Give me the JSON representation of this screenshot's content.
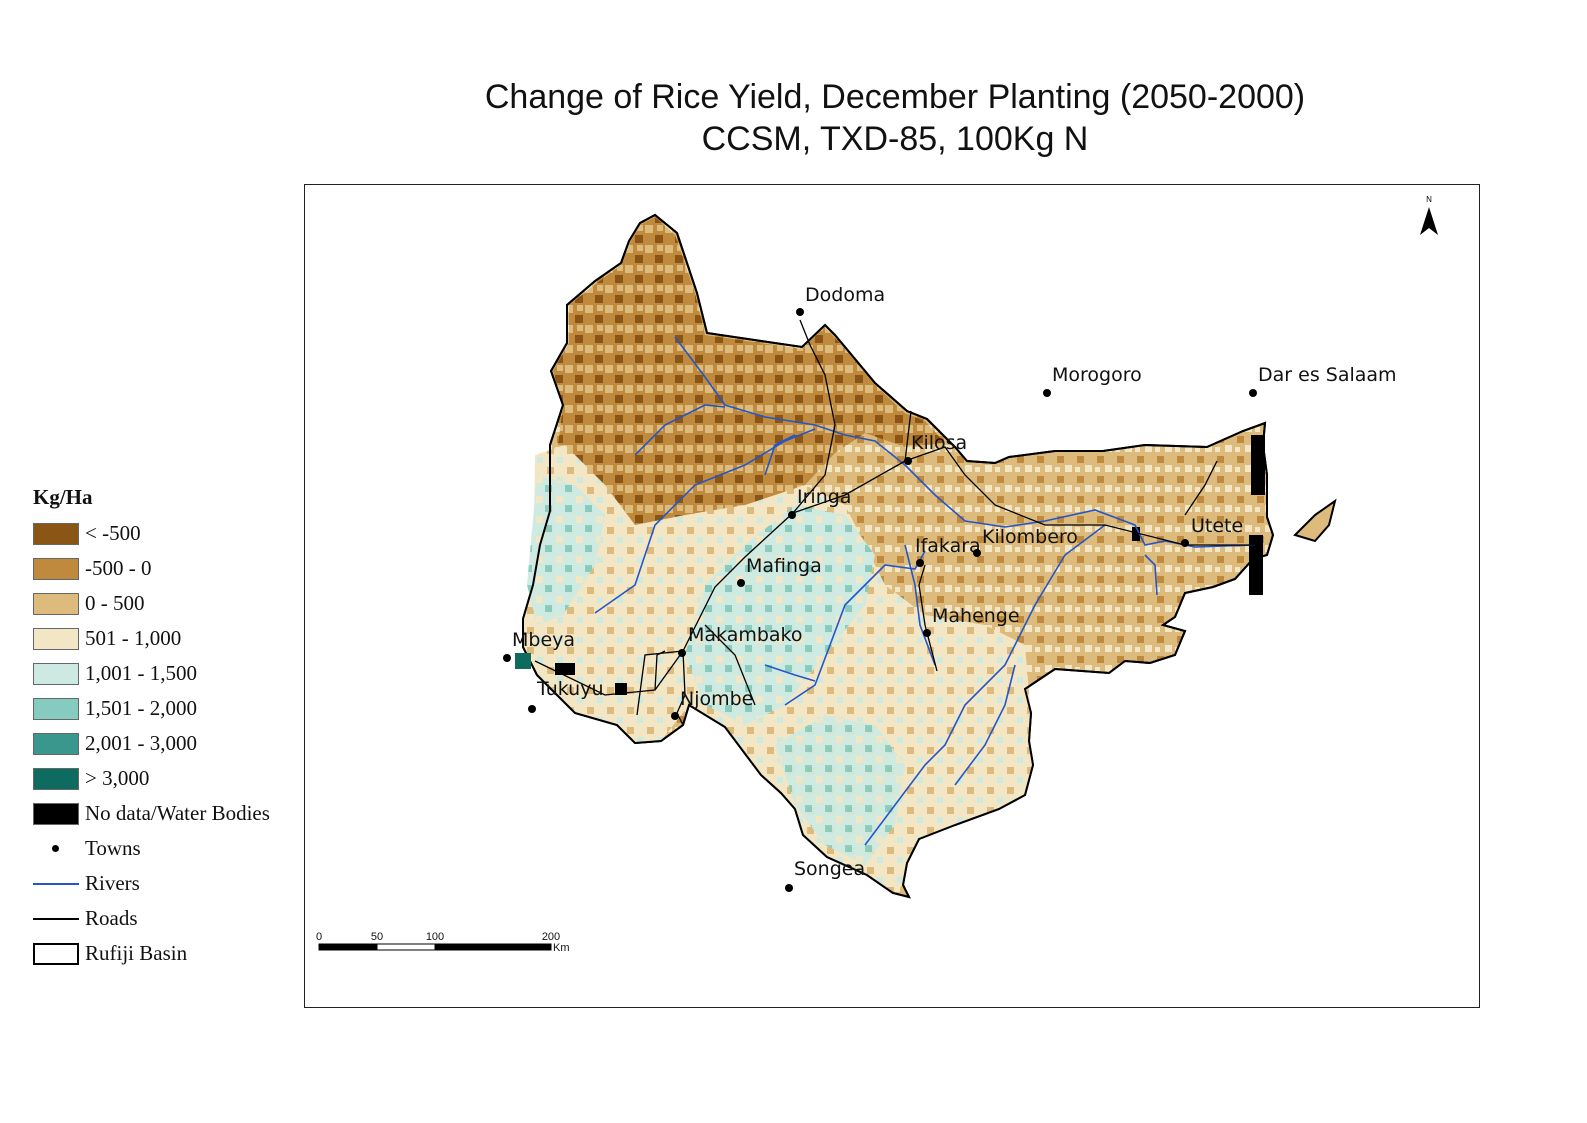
{
  "title": {
    "line1": "Change of Rice Yield, December Planting (2050-2000)",
    "line2": "CCSM, TXD-85, 100Kg N"
  },
  "legend": {
    "title": "Kg/Ha",
    "classes": [
      {
        "label": "< -500",
        "color": "#8b5515"
      },
      {
        "label": "-500 - 0",
        "color": "#c08a3e"
      },
      {
        "label": "0 - 500",
        "color": "#dcbb7c"
      },
      {
        "label": "501 - 1,000",
        "color": "#f3e6c4"
      },
      {
        "label": "1,001 - 1,500",
        "color": "#cdeae2"
      },
      {
        "label": "1,501 - 2,000",
        "color": "#86cbbf"
      },
      {
        "label": "2,001 - 3,000",
        "color": "#3a978e"
      },
      {
        "label": "> 3,000",
        "color": "#0e6b5f"
      },
      {
        "label": "No data/Water Bodies",
        "color": "#000000"
      }
    ],
    "towns_label": "Towns",
    "rivers_label": "Rivers",
    "rivers_color": "#2456c8",
    "roads_label": "Roads",
    "roads_color": "#000000",
    "basin_label": "Rufiji Basin"
  },
  "map": {
    "north_label": "N",
    "towns": [
      "Dodoma",
      "Morogoro",
      "Dar es Salaam",
      "Kilosa",
      "Iringa",
      "Ifakara",
      "Kilombero",
      "Utete",
      "Mafinga",
      "Mahenge",
      "Makambako",
      "Mbeya",
      "Tukuyu",
      "Njombe",
      "Songea"
    ],
    "scale_bar": {
      "ticks": [
        "0",
        "50",
        "100",
        "200"
      ],
      "unit": "Km"
    }
  }
}
